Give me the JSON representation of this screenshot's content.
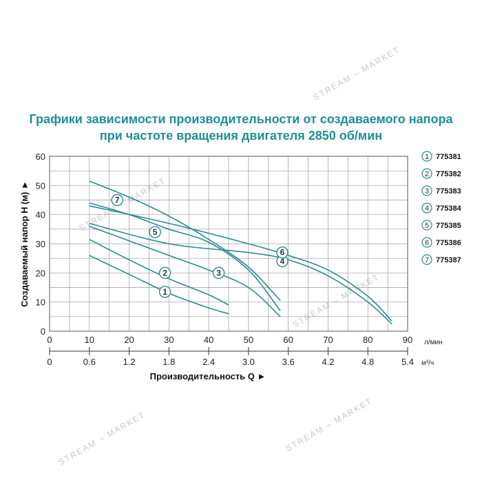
{
  "title_lines": [
    "Графики зависимости производительности от создаваемого напора",
    "при частоте вращения двигателя 2850 об/мин"
  ],
  "watermark": "STREAM – MARKET",
  "chart_data": {
    "type": "line",
    "ylabel": "Создаваемый напор Н (м)",
    "xlabel": "Производительность Q",
    "ylim": [
      0,
      60
    ],
    "xlim": [
      0,
      90
    ],
    "yticks": [
      "0",
      "10",
      "20",
      "30",
      "40",
      "50",
      "60"
    ],
    "x_primary": {
      "unit": "л/мин",
      "ticks": [
        "0",
        "10",
        "20",
        "30",
        "40",
        "50",
        "60",
        "70",
        "80",
        "90"
      ]
    },
    "x_secondary": {
      "unit": "м³/ч",
      "ticks": [
        "0",
        "0.6",
        "1.2",
        "1.8",
        "2.4",
        "3.0",
        "3.6",
        "4.2",
        "4.8",
        "5.4"
      ]
    },
    "grid": true,
    "legend_position": "right",
    "series": [
      {
        "name": "775381",
        "label": "1",
        "color": "#2a8a8e",
        "x": [
          10,
          20,
          30,
          40,
          45
        ],
        "y": [
          26,
          19.5,
          13,
          8,
          6
        ]
      },
      {
        "name": "775382",
        "label": "2",
        "color": "#2a8a8e",
        "x": [
          10,
          20,
          30,
          40,
          45
        ],
        "y": [
          31.5,
          24.5,
          18,
          12.5,
          9
        ]
      },
      {
        "name": "775383",
        "label": "3",
        "color": "#2a8a8e",
        "x": [
          10,
          20,
          30,
          40,
          50,
          58
        ],
        "y": [
          36,
          31,
          26,
          21,
          15,
          5
        ]
      },
      {
        "name": "775384",
        "label": "4",
        "color": "#2a8a8e",
        "x": [
          10,
          30,
          50,
          60,
          70,
          80,
          86
        ],
        "y": [
          37,
          30,
          27,
          24.5,
          19,
          10,
          2.5
        ]
      },
      {
        "name": "775385",
        "label": "5",
        "color": "#2a8a8e",
        "x": [
          10,
          20,
          30,
          40,
          50,
          58
        ],
        "y": [
          44,
          40,
          35,
          30.5,
          21,
          7
        ]
      },
      {
        "name": "775386",
        "label": "6",
        "color": "#2a8a8e",
        "x": [
          10,
          30,
          50,
          60,
          70,
          80,
          86
        ],
        "y": [
          43,
          37,
          30,
          26,
          21,
          12,
          3.5
        ]
      },
      {
        "name": "775387",
        "label": "7",
        "color": "#2a8a8e",
        "x": [
          10,
          20,
          30,
          40,
          50,
          58
        ],
        "y": [
          51.5,
          46,
          39.5,
          31.5,
          22,
          10.5
        ]
      }
    ]
  }
}
